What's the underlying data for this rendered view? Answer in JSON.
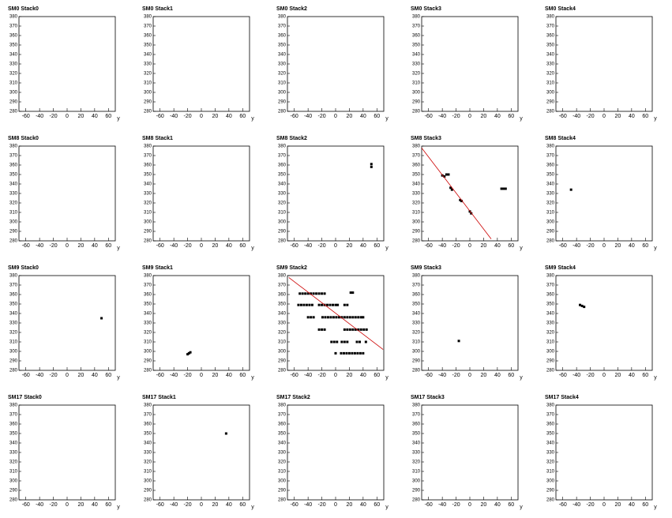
{
  "chart_data": [
    {
      "type": "scatter",
      "title": "SM0 Stack0",
      "xlabel": "y",
      "xlim": [
        -70,
        70
      ],
      "ylim": [
        280,
        380
      ],
      "xticks": [
        -60,
        -40,
        -20,
        0,
        20,
        40,
        60
      ],
      "yticks": [
        280,
        290,
        300,
        310,
        320,
        330,
        340,
        350,
        360,
        370,
        380
      ],
      "color": "#000000",
      "x": [],
      "values": []
    },
    {
      "type": "scatter",
      "title": "SM0 Stack1",
      "xlabel": "y",
      "xlim": [
        -70,
        70
      ],
      "ylim": [
        280,
        380
      ],
      "xticks": [
        -60,
        -40,
        -20,
        0,
        20,
        40,
        60
      ],
      "yticks": [
        280,
        290,
        300,
        310,
        320,
        330,
        340,
        350,
        360,
        370,
        380
      ],
      "color": "#000000",
      "x": [],
      "values": []
    },
    {
      "type": "scatter",
      "title": "SM0 Stack2",
      "xlabel": "y",
      "xlim": [
        -70,
        70
      ],
      "ylim": [
        280,
        380
      ],
      "xticks": [
        -60,
        -40,
        -20,
        0,
        20,
        40,
        60
      ],
      "yticks": [
        280,
        290,
        300,
        310,
        320,
        330,
        340,
        350,
        360,
        370,
        380
      ],
      "color": "#000000",
      "x": [],
      "values": []
    },
    {
      "type": "scatter",
      "title": "SM0 Stack3",
      "xlabel": "y",
      "xlim": [
        -70,
        70
      ],
      "ylim": [
        280,
        380
      ],
      "xticks": [
        -60,
        -40,
        -20,
        0,
        20,
        40,
        60
      ],
      "yticks": [
        280,
        290,
        300,
        310,
        320,
        330,
        340,
        350,
        360,
        370,
        380
      ],
      "color": "#000000",
      "x": [],
      "values": []
    },
    {
      "type": "scatter",
      "title": "SM0 Stack4",
      "xlabel": "y",
      "xlim": [
        -70,
        70
      ],
      "ylim": [
        280,
        380
      ],
      "xticks": [
        -60,
        -40,
        -20,
        0,
        20,
        40,
        60
      ],
      "yticks": [
        280,
        290,
        300,
        310,
        320,
        330,
        340,
        350,
        360,
        370,
        380
      ],
      "color": "#000000",
      "x": [],
      "values": []
    },
    {
      "type": "scatter",
      "title": "SM8 Stack0",
      "xlabel": "y",
      "xlim": [
        -70,
        70
      ],
      "ylim": [
        280,
        380
      ],
      "xticks": [
        -60,
        -40,
        -20,
        0,
        20,
        40,
        60
      ],
      "yticks": [
        280,
        290,
        300,
        310,
        320,
        330,
        340,
        350,
        360,
        370,
        380
      ],
      "color": "#000000",
      "x": [],
      "values": []
    },
    {
      "type": "scatter",
      "title": "SM8 Stack1",
      "xlabel": "y",
      "xlim": [
        -70,
        70
      ],
      "ylim": [
        280,
        380
      ],
      "xticks": [
        -60,
        -40,
        -20,
        0,
        20,
        40,
        60
      ],
      "yticks": [
        280,
        290,
        300,
        310,
        320,
        330,
        340,
        350,
        360,
        370,
        380
      ],
      "color": "#000000",
      "x": [],
      "values": []
    },
    {
      "type": "scatter",
      "title": "SM8 Stack2",
      "xlabel": "y",
      "xlim": [
        -70,
        70
      ],
      "ylim": [
        280,
        380
      ],
      "xticks": [
        -60,
        -40,
        -20,
        0,
        20,
        40,
        60
      ],
      "yticks": [
        280,
        290,
        300,
        310,
        320,
        330,
        340,
        350,
        360,
        370,
        380
      ],
      "color": "#000000",
      "x": [
        52,
        52
      ],
      "values": [
        361,
        358
      ]
    },
    {
      "type": "scatter",
      "title": "SM8 Stack3",
      "xlabel": "y",
      "xlim": [
        -70,
        70
      ],
      "ylim": [
        280,
        380
      ],
      "xticks": [
        -60,
        -40,
        -20,
        0,
        20,
        40,
        60
      ],
      "yticks": [
        280,
        290,
        300,
        310,
        320,
        330,
        340,
        350,
        360,
        370,
        380
      ],
      "color": "#000000",
      "x": [
        -40,
        -37,
        -34,
        -31,
        -28,
        -26,
        -14,
        -12,
        0,
        2,
        46,
        48,
        50,
        52
      ],
      "values": [
        349,
        348,
        350,
        350,
        336,
        334,
        323,
        322,
        311,
        309,
        335,
        335,
        335,
        335
      ],
      "fit": {
        "color": "#cc0000",
        "x": [
          -70,
          31
        ],
        "values": [
          378,
          282
        ]
      }
    },
    {
      "type": "scatter",
      "title": "SM8 Stack4",
      "xlabel": "y",
      "xlim": [
        -70,
        70
      ],
      "ylim": [
        280,
        380
      ],
      "xticks": [
        -60,
        -40,
        -20,
        0,
        20,
        40,
        60
      ],
      "yticks": [
        280,
        290,
        300,
        310,
        320,
        330,
        340,
        350,
        360,
        370,
        380
      ],
      "color": "#000000",
      "x": [
        -48
      ],
      "values": [
        334
      ]
    },
    {
      "type": "scatter",
      "title": "SM9 Stack0",
      "xlabel": "y",
      "xlim": [
        -70,
        70
      ],
      "ylim": [
        280,
        380
      ],
      "xticks": [
        -60,
        -40,
        -20,
        0,
        20,
        40,
        60
      ],
      "yticks": [
        280,
        290,
        300,
        310,
        320,
        330,
        340,
        350,
        360,
        370,
        380
      ],
      "color": "#000000",
      "x": [
        50
      ],
      "values": [
        335
      ]
    },
    {
      "type": "scatter",
      "title": "SM9 Stack1",
      "xlabel": "y",
      "xlim": [
        -70,
        70
      ],
      "ylim": [
        280,
        380
      ],
      "xticks": [
        -60,
        -40,
        -20,
        0,
        20,
        40,
        60
      ],
      "yticks": [
        280,
        290,
        300,
        310,
        320,
        330,
        340,
        350,
        360,
        370,
        380
      ],
      "color": "#000000",
      "x": [
        -20,
        -18,
        -16
      ],
      "values": [
        297,
        298,
        299
      ]
    },
    {
      "type": "scatter",
      "title": "SM9 Stack2",
      "xlabel": "y",
      "xlim": [
        -70,
        70
      ],
      "ylim": [
        280,
        380
      ],
      "xticks": [
        -60,
        -40,
        -20,
        0,
        20,
        40,
        60
      ],
      "yticks": [
        280,
        290,
        300,
        310,
        320,
        330,
        340,
        350,
        360,
        370,
        380
      ],
      "color": "#000000",
      "x": [
        -52,
        -48,
        -44,
        -40,
        -36,
        -32,
        -28,
        -24,
        -20,
        -16,
        22,
        25,
        -54,
        -50,
        -46,
        -42,
        -38,
        -34,
        -24,
        -20,
        -16,
        -12,
        -8,
        -4,
        0,
        3,
        13,
        17,
        -40,
        -36,
        -32,
        -19,
        -15,
        -11,
        -7,
        -3,
        1,
        5,
        9,
        13,
        17,
        21,
        25,
        29,
        33,
        37,
        40,
        -24,
        -20,
        -16,
        13,
        17,
        21,
        25,
        29,
        33,
        37,
        41,
        45,
        -6,
        -2,
        2,
        9,
        13,
        17,
        31,
        35,
        44,
        0,
        8,
        12,
        16,
        20,
        24,
        28,
        32,
        36,
        40
      ],
      "values": [
        361,
        361,
        361,
        361,
        361,
        361,
        361,
        361,
        361,
        361,
        362,
        362,
        349,
        349,
        349,
        349,
        349,
        349,
        349,
        349,
        349,
        349,
        349,
        349,
        349,
        349,
        349,
        349,
        336,
        336,
        336,
        336,
        336,
        336,
        336,
        336,
        336,
        336,
        336,
        336,
        336,
        336,
        336,
        336,
        336,
        336,
        336,
        323,
        323,
        323,
        323,
        323,
        323,
        323,
        323,
        323,
        323,
        323,
        323,
        310,
        310,
        310,
        310,
        310,
        310,
        310,
        310,
        310,
        298,
        298,
        298,
        298,
        298,
        298,
        298,
        298,
        298,
        298
      ],
      "fit": {
        "color": "#cc0000",
        "x": [
          -68,
          69
        ],
        "values": [
          378,
          302
        ]
      }
    },
    {
      "type": "scatter",
      "title": "SM9 Stack3",
      "xlabel": "y",
      "xlim": [
        -70,
        70
      ],
      "ylim": [
        280,
        380
      ],
      "xticks": [
        -60,
        -40,
        -20,
        0,
        20,
        40,
        60
      ],
      "yticks": [
        280,
        290,
        300,
        310,
        320,
        330,
        340,
        350,
        360,
        370,
        380
      ],
      "color": "#000000",
      "x": [
        -16
      ],
      "values": [
        311
      ]
    },
    {
      "type": "scatter",
      "title": "SM9 Stack4",
      "xlabel": "y",
      "xlim": [
        -70,
        70
      ],
      "ylim": [
        280,
        380
      ],
      "xticks": [
        -60,
        -40,
        -20,
        0,
        20,
        40,
        60
      ],
      "yticks": [
        280,
        290,
        300,
        310,
        320,
        330,
        340,
        350,
        360,
        370,
        380
      ],
      "color": "#000000",
      "x": [
        -35,
        -32,
        -29
      ],
      "values": [
        349,
        348,
        347
      ]
    },
    {
      "type": "scatter",
      "title": "SM17 Stack0",
      "xlabel": "y",
      "xlim": [
        -70,
        70
      ],
      "ylim": [
        280,
        380
      ],
      "xticks": [
        -60,
        -40,
        -20,
        0,
        20,
        40,
        60
      ],
      "yticks": [
        280,
        290,
        300,
        310,
        320,
        330,
        340,
        350,
        360,
        370,
        380
      ],
      "color": "#000000",
      "x": [],
      "values": []
    },
    {
      "type": "scatter",
      "title": "SM17 Stack1",
      "xlabel": "y",
      "xlim": [
        -70,
        70
      ],
      "ylim": [
        280,
        380
      ],
      "xticks": [
        -60,
        -40,
        -20,
        0,
        20,
        40,
        60
      ],
      "yticks": [
        280,
        290,
        300,
        310,
        320,
        330,
        340,
        350,
        360,
        370,
        380
      ],
      "color": "#000000",
      "x": [
        36
      ],
      "values": [
        350
      ]
    },
    {
      "type": "scatter",
      "title": "SM17 Stack2",
      "xlabel": "y",
      "xlim": [
        -70,
        70
      ],
      "ylim": [
        280,
        380
      ],
      "xticks": [
        -60,
        -40,
        -20,
        0,
        20,
        40,
        60
      ],
      "yticks": [
        280,
        290,
        300,
        310,
        320,
        330,
        340,
        350,
        360,
        370,
        380
      ],
      "color": "#000000",
      "x": [],
      "values": []
    },
    {
      "type": "scatter",
      "title": "SM17 Stack3",
      "xlabel": "y",
      "xlim": [
        -70,
        70
      ],
      "ylim": [
        280,
        380
      ],
      "xticks": [
        -60,
        -40,
        -20,
        0,
        20,
        40,
        60
      ],
      "yticks": [
        280,
        290,
        300,
        310,
        320,
        330,
        340,
        350,
        360,
        370,
        380
      ],
      "color": "#000000",
      "x": [],
      "values": []
    },
    {
      "type": "scatter",
      "title": "SM17 Stack4",
      "xlabel": "y",
      "xlim": [
        -70,
        70
      ],
      "ylim": [
        280,
        380
      ],
      "xticks": [
        -60,
        -40,
        -20,
        0,
        20,
        40,
        60
      ],
      "yticks": [
        280,
        290,
        300,
        310,
        320,
        330,
        340,
        350,
        360,
        370,
        380
      ],
      "color": "#000000",
      "x": [],
      "values": []
    }
  ]
}
